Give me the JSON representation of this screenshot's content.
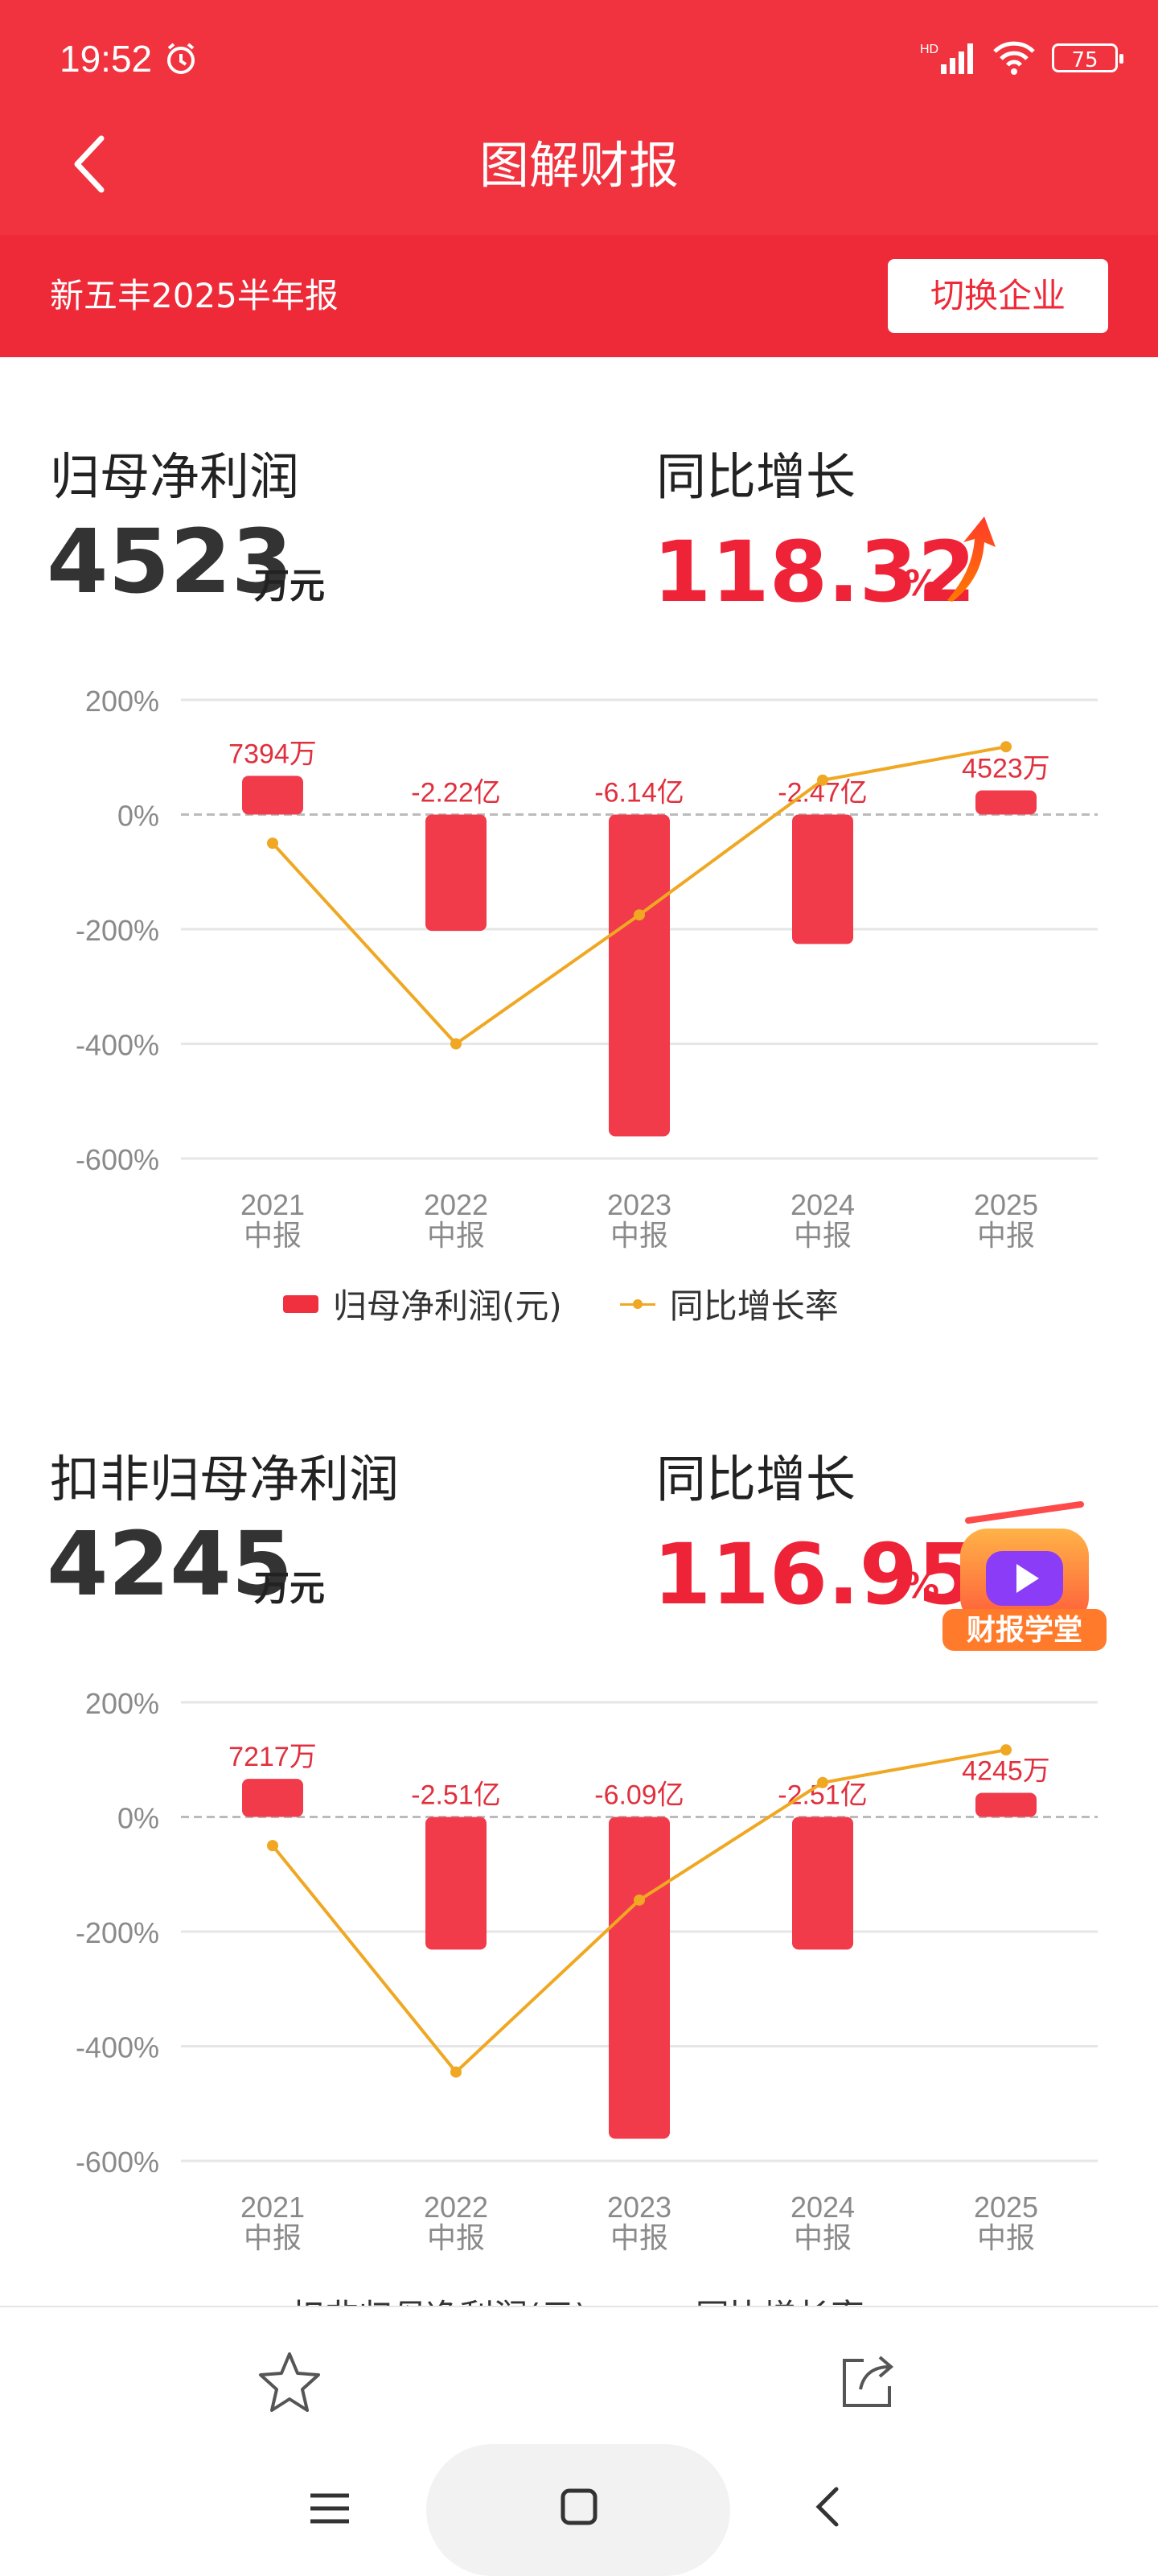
{
  "status": {
    "time": "19:52",
    "network": "HD",
    "battery": "75"
  },
  "header": {
    "title": "图解财报"
  },
  "subbar": {
    "company_report": "新五丰2025半年报",
    "switch_label": "切换企业"
  },
  "section1": {
    "label": "归母净利润",
    "value": "4523",
    "unit": "万元",
    "growth_label": "同比增长",
    "growth_value": "118.32",
    "growth_unit": "%",
    "legend_bar": "归母净利润(元)",
    "legend_line": "同比增长率"
  },
  "section2": {
    "label": "扣非归母净利润",
    "value": "4245",
    "unit": "万元",
    "growth_label": "同比增长",
    "growth_value": "116.95",
    "growth_unit": "%",
    "legend_bar": "扣非归母净利润(元)",
    "legend_line": "同比增长率"
  },
  "school_badge": "财报学堂",
  "colors": {
    "brand_red": "#f1333f",
    "line_orange": "#f0a722"
  },
  "chart_data": [
    {
      "type": "bar",
      "categories": [
        "2021\n中报",
        "2022\n中报",
        "2023\n中报",
        "2024\n中报",
        "2025\n中报"
      ],
      "y_axis_ticks": [
        "200%",
        "0%",
        "-200%",
        "-400%",
        "-600%"
      ],
      "ylim": [
        -600,
        200
      ],
      "series": [
        {
          "name": "归母净利润(元)",
          "type": "bar",
          "labels": [
            "7394万",
            "-2.22亿",
            "-6.14亿",
            "-2.47亿",
            "4523万"
          ],
          "values_yuan": [
            73940000,
            -222000000,
            -614000000,
            -247000000,
            45230000
          ]
        },
        {
          "name": "同比增长率",
          "type": "line",
          "values": [
            -50,
            -400,
            -175,
            60,
            118.32
          ]
        }
      ],
      "legend": "bottom"
    },
    {
      "type": "bar",
      "categories": [
        "2021\n中报",
        "2022\n中报",
        "2023\n中报",
        "2024\n中报",
        "2025\n中报"
      ],
      "y_axis_ticks": [
        "200%",
        "0%",
        "-200%",
        "-400%",
        "-600%"
      ],
      "ylim": [
        -600,
        200
      ],
      "series": [
        {
          "name": "扣非归母净利润(元)",
          "type": "bar",
          "labels": [
            "7217万",
            "-2.51亿",
            "-6.09亿",
            "-2.51亿",
            "4245万"
          ],
          "values_yuan": [
            72170000,
            -251000000,
            -609000000,
            -251000000,
            42450000
          ]
        },
        {
          "name": "同比增长率",
          "type": "line",
          "values": [
            -50,
            -445,
            -145,
            60,
            116.95
          ]
        }
      ],
      "legend": "bottom"
    }
  ]
}
